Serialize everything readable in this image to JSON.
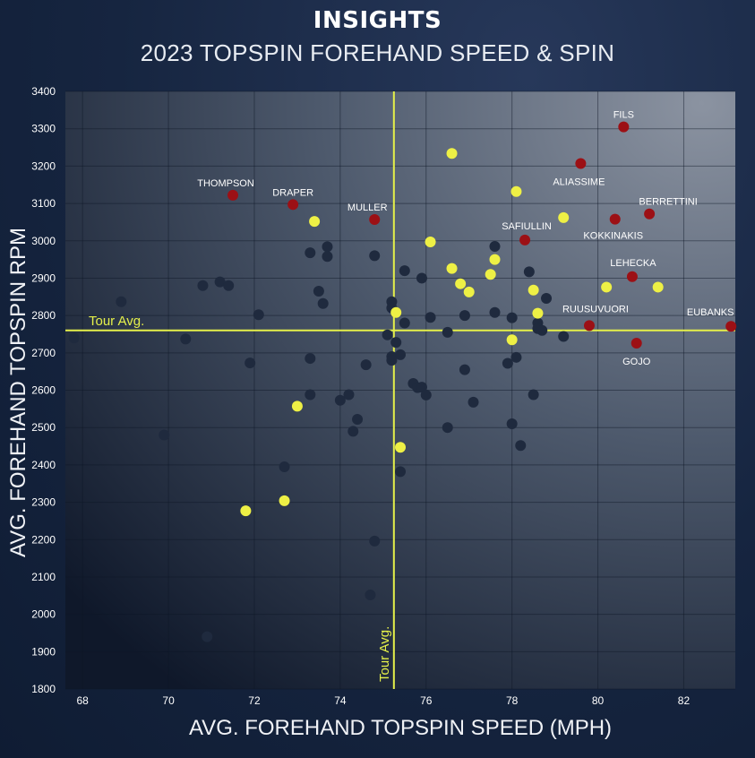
{
  "header": {
    "title": "INSIGHTS",
    "subtitle": "2023 TOPSPIN FOREHAND SPEED & SPIN"
  },
  "colors": {
    "background": "#162540",
    "dot_default": "#1f2a3e",
    "dot_highlight": "#eef045",
    "dot_labeled": "#9c1015",
    "avg_line": "#e5f04a"
  },
  "chart_data": {
    "type": "scatter",
    "title": "2023 TOPSPIN FOREHAND SPEED & SPIN",
    "xlabel": "AVG. FOREHAND TOPSPIN SPEED (MPH)",
    "ylabel": "AVG. FOREHAND TOPSPIN RPM",
    "xlim": [
      67.6,
      83.2
    ],
    "ylim": [
      1800,
      3400
    ],
    "xticks": [
      68,
      70,
      72,
      74,
      76,
      78,
      80,
      82
    ],
    "yticks": [
      1800,
      1900,
      2000,
      2100,
      2200,
      2300,
      2400,
      2500,
      2600,
      2700,
      2800,
      2900,
      3000,
      3100,
      3200,
      3300,
      3400
    ],
    "grid": true,
    "tour_avg": {
      "x": 75.25,
      "y": 2760,
      "x_label": "Tour Avg.",
      "y_label": "Tour Avg."
    },
    "labeled_points": [
      {
        "name": "FILS",
        "x": 80.6,
        "y": 3305
      },
      {
        "name": "ALIASSIME",
        "x": 79.6,
        "y": 3207
      },
      {
        "name": "THOMPSON",
        "x": 71.5,
        "y": 3122
      },
      {
        "name": "DRAPER",
        "x": 72.9,
        "y": 3097
      },
      {
        "name": "MULLER",
        "x": 74.8,
        "y": 3057
      },
      {
        "name": "BERRETTINI",
        "x": 81.2,
        "y": 3072
      },
      {
        "name": "KOKKINAKIS",
        "x": 80.4,
        "y": 3058
      },
      {
        "name": "SAFIULLIN",
        "x": 78.3,
        "y": 3002
      },
      {
        "name": "LEHECKA",
        "x": 80.8,
        "y": 2904
      },
      {
        "name": "RUUSUVUORI",
        "x": 79.8,
        "y": 2773
      },
      {
        "name": "EUBANKS",
        "x": 83.1,
        "y": 2771
      },
      {
        "name": "GOJO",
        "x": 80.9,
        "y": 2726
      }
    ],
    "highlight_points": [
      {
        "x": 76.6,
        "y": 3234
      },
      {
        "x": 78.1,
        "y": 3132
      },
      {
        "x": 79.2,
        "y": 3062
      },
      {
        "x": 73.4,
        "y": 3052
      },
      {
        "x": 76.1,
        "y": 2997
      },
      {
        "x": 77.6,
        "y": 2950
      },
      {
        "x": 76.6,
        "y": 2926
      },
      {
        "x": 77.5,
        "y": 2910
      },
      {
        "x": 76.8,
        "y": 2885
      },
      {
        "x": 77.0,
        "y": 2863
      },
      {
        "x": 78.5,
        "y": 2868
      },
      {
        "x": 80.2,
        "y": 2876
      },
      {
        "x": 81.4,
        "y": 2876
      },
      {
        "x": 75.3,
        "y": 2808
      },
      {
        "x": 78.6,
        "y": 2806
      },
      {
        "x": 78.0,
        "y": 2735
      },
      {
        "x": 73.0,
        "y": 2557
      },
      {
        "x": 75.4,
        "y": 2447
      },
      {
        "x": 72.7,
        "y": 2304
      },
      {
        "x": 71.8,
        "y": 2277
      }
    ],
    "other_points": [
      {
        "x": 67.8,
        "y": 2740
      },
      {
        "x": 68.9,
        "y": 2837
      },
      {
        "x": 69.9,
        "y": 2480
      },
      {
        "x": 70.4,
        "y": 2737
      },
      {
        "x": 70.8,
        "y": 2880
      },
      {
        "x": 71.2,
        "y": 2890
      },
      {
        "x": 71.4,
        "y": 2880
      },
      {
        "x": 70.9,
        "y": 1940
      },
      {
        "x": 71.9,
        "y": 2673
      },
      {
        "x": 72.1,
        "y": 2802
      },
      {
        "x": 72.7,
        "y": 2395
      },
      {
        "x": 73.3,
        "y": 2968
      },
      {
        "x": 73.3,
        "y": 2685
      },
      {
        "x": 73.3,
        "y": 2588
      },
      {
        "x": 73.5,
        "y": 2865
      },
      {
        "x": 73.6,
        "y": 2832
      },
      {
        "x": 73.7,
        "y": 2984
      },
      {
        "x": 73.7,
        "y": 2958
      },
      {
        "x": 74.0,
        "y": 2573
      },
      {
        "x": 74.2,
        "y": 2588
      },
      {
        "x": 74.3,
        "y": 2490
      },
      {
        "x": 74.4,
        "y": 2522
      },
      {
        "x": 74.6,
        "y": 2668
      },
      {
        "x": 74.7,
        "y": 2052
      },
      {
        "x": 74.8,
        "y": 2196
      },
      {
        "x": 74.8,
        "y": 2960
      },
      {
        "x": 75.1,
        "y": 2748
      },
      {
        "x": 75.2,
        "y": 2837
      },
      {
        "x": 75.2,
        "y": 2820
      },
      {
        "x": 75.2,
        "y": 2690
      },
      {
        "x": 75.2,
        "y": 2680
      },
      {
        "x": 75.3,
        "y": 2728
      },
      {
        "x": 75.4,
        "y": 2695
      },
      {
        "x": 75.4,
        "y": 2382
      },
      {
        "x": 75.5,
        "y": 2920
      },
      {
        "x": 75.5,
        "y": 2780
      },
      {
        "x": 75.7,
        "y": 2618
      },
      {
        "x": 75.8,
        "y": 2607
      },
      {
        "x": 75.9,
        "y": 2900
      },
      {
        "x": 75.9,
        "y": 2608
      },
      {
        "x": 76.0,
        "y": 2587
      },
      {
        "x": 76.1,
        "y": 2795
      },
      {
        "x": 76.5,
        "y": 2755
      },
      {
        "x": 76.5,
        "y": 2500
      },
      {
        "x": 76.9,
        "y": 2800
      },
      {
        "x": 76.9,
        "y": 2655
      },
      {
        "x": 77.1,
        "y": 2568
      },
      {
        "x": 77.6,
        "y": 2985
      },
      {
        "x": 77.6,
        "y": 2808
      },
      {
        "x": 77.9,
        "y": 2672
      },
      {
        "x": 78.0,
        "y": 2794
      },
      {
        "x": 78.0,
        "y": 2510
      },
      {
        "x": 78.1,
        "y": 2688
      },
      {
        "x": 78.2,
        "y": 2452
      },
      {
        "x": 78.4,
        "y": 2917
      },
      {
        "x": 78.5,
        "y": 2588
      },
      {
        "x": 78.6,
        "y": 2780
      },
      {
        "x": 78.6,
        "y": 2765
      },
      {
        "x": 78.7,
        "y": 2760
      },
      {
        "x": 78.8,
        "y": 2846
      },
      {
        "x": 79.2,
        "y": 2744
      }
    ]
  }
}
